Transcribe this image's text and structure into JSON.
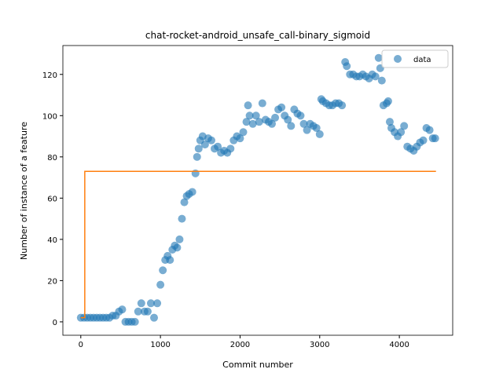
{
  "chart_data": {
    "type": "scatter",
    "title": "chat-rocket-android_unsafe_call-binary_sigmoid",
    "x_label": "Commit number",
    "y_label": "Number of instance of a feature",
    "xlim": [
      -225,
      4670
    ],
    "ylim": [
      -6.5,
      134
    ],
    "xticks": [
      0,
      1000,
      2000,
      3000,
      4000
    ],
    "yticks": [
      0,
      20,
      40,
      60,
      80,
      100,
      120
    ],
    "legend": "upper right",
    "series": [
      {
        "name": "data",
        "type": "scatter",
        "color": "#1f77b4",
        "x": [
          0,
          40,
          80,
          120,
          160,
          200,
          240,
          280,
          320,
          360,
          400,
          440,
          480,
          520,
          560,
          600,
          640,
          680,
          720,
          760,
          800,
          840,
          880,
          920,
          960,
          1000,
          1030,
          1060,
          1090,
          1120,
          1150,
          1180,
          1210,
          1240,
          1270,
          1300,
          1330,
          1360,
          1400,
          1440,
          1460,
          1480,
          1500,
          1530,
          1560,
          1600,
          1640,
          1680,
          1720,
          1760,
          1800,
          1840,
          1880,
          1920,
          1960,
          2000,
          2040,
          2080,
          2100,
          2120,
          2160,
          2200,
          2240,
          2280,
          2320,
          2360,
          2400,
          2440,
          2480,
          2520,
          2560,
          2600,
          2640,
          2680,
          2720,
          2760,
          2800,
          2840,
          2880,
          2920,
          2960,
          3000,
          3020,
          3040,
          3080,
          3120,
          3160,
          3200,
          3240,
          3280,
          3320,
          3340,
          3380,
          3420,
          3460,
          3500,
          3540,
          3580,
          3620,
          3660,
          3700,
          3740,
          3760,
          3780,
          3800,
          3840,
          3860,
          3880,
          3900,
          3940,
          3980,
          4020,
          4060,
          4100,
          4140,
          4180,
          4220,
          4260,
          4300,
          4340,
          4380,
          4420,
          4450
        ],
        "values": [
          2,
          2,
          2,
          2,
          2,
          2,
          2,
          2,
          2,
          2,
          3,
          3,
          5,
          6,
          0,
          0,
          0,
          0,
          5,
          9,
          5,
          5,
          9,
          2,
          9,
          18,
          25,
          30,
          32,
          30,
          35,
          37,
          36,
          40,
          50,
          58,
          61,
          62,
          63,
          72,
          80,
          84,
          88,
          90,
          86,
          89,
          88,
          84,
          85,
          82,
          83,
          82,
          84,
          88,
          90,
          89,
          92,
          97,
          105,
          100,
          96,
          100,
          97,
          106,
          98,
          97,
          96,
          99,
          103,
          104,
          100,
          98,
          95,
          103,
          101,
          100,
          96,
          93,
          96,
          95,
          94,
          91,
          108,
          107,
          106,
          105,
          105,
          106,
          106,
          105,
          126,
          124,
          120,
          120,
          119,
          119,
          120,
          119,
          118,
          120,
          119,
          128,
          123,
          117,
          105,
          106,
          107,
          97,
          94,
          92,
          90,
          92,
          95,
          85,
          84,
          83,
          85,
          87,
          88,
          94,
          93,
          89,
          89
        ]
      },
      {
        "type": "line",
        "color": "#ff7f0e",
        "x": [
          0,
          50,
          50,
          4460
        ],
        "values": [
          2,
          2,
          73,
          73
        ]
      }
    ]
  }
}
